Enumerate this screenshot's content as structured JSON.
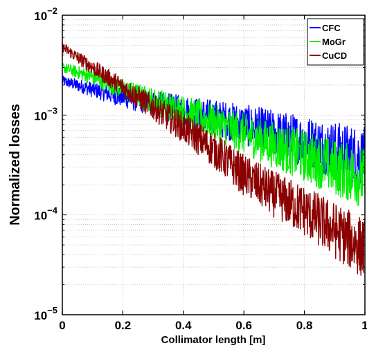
{
  "chart_data": {
    "type": "line",
    "xlabel": "Collimator length [m]",
    "ylabel": "Normalized losses",
    "x_scale": "linear",
    "y_scale": "log",
    "xlim": [
      0,
      1
    ],
    "ylim": [
      1e-05,
      0.01
    ],
    "grid": true,
    "legend_position": "top-right",
    "x_ticks": [
      {
        "value": 0,
        "label": "0"
      },
      {
        "value": 0.2,
        "label": "0.2"
      },
      {
        "value": 0.4,
        "label": "0.4"
      },
      {
        "value": 0.6,
        "label": "0.6"
      },
      {
        "value": 0.8,
        "label": "0.8"
      },
      {
        "value": 1,
        "label": "1"
      }
    ],
    "y_ticks": [
      {
        "value": 1e-05,
        "base": "10",
        "exp": "−5"
      },
      {
        "value": 0.0001,
        "base": "10",
        "exp": "−4"
      },
      {
        "value": 0.001,
        "base": "10",
        "exp": "−3"
      },
      {
        "value": 0.01,
        "base": "10",
        "exp": "−2"
      }
    ],
    "series": [
      {
        "name": "CFC",
        "color": "#0000ff",
        "x": [
          0,
          0.1,
          0.2,
          0.3,
          0.4,
          0.5,
          0.6,
          0.7,
          0.8,
          0.9,
          1.0
        ],
        "y": [
          0.0022,
          0.0018,
          0.0015,
          0.0013,
          0.0011,
          0.00095,
          0.0008,
          0.00066,
          0.00055,
          0.00045,
          0.00037
        ]
      },
      {
        "name": "MoGr",
        "color": "#00ee00",
        "x": [
          0,
          0.1,
          0.2,
          0.3,
          0.4,
          0.5,
          0.6,
          0.7,
          0.8,
          0.9,
          1.0
        ],
        "y": [
          0.003,
          0.0024,
          0.0018,
          0.0014,
          0.0011,
          0.00085,
          0.00065,
          0.0005,
          0.00039,
          0.0003,
          0.00023
        ]
      },
      {
        "name": "CuCD",
        "color": "#8b0000",
        "x": [
          0,
          0.1,
          0.2,
          0.3,
          0.4,
          0.5,
          0.6,
          0.7,
          0.8,
          0.9,
          1.0
        ],
        "y": [
          0.0048,
          0.003,
          0.0019,
          0.0012,
          0.00075,
          0.00045,
          0.00025,
          0.00016,
          0.00011,
          7e-05,
          4.5e-05
        ]
      }
    ]
  }
}
